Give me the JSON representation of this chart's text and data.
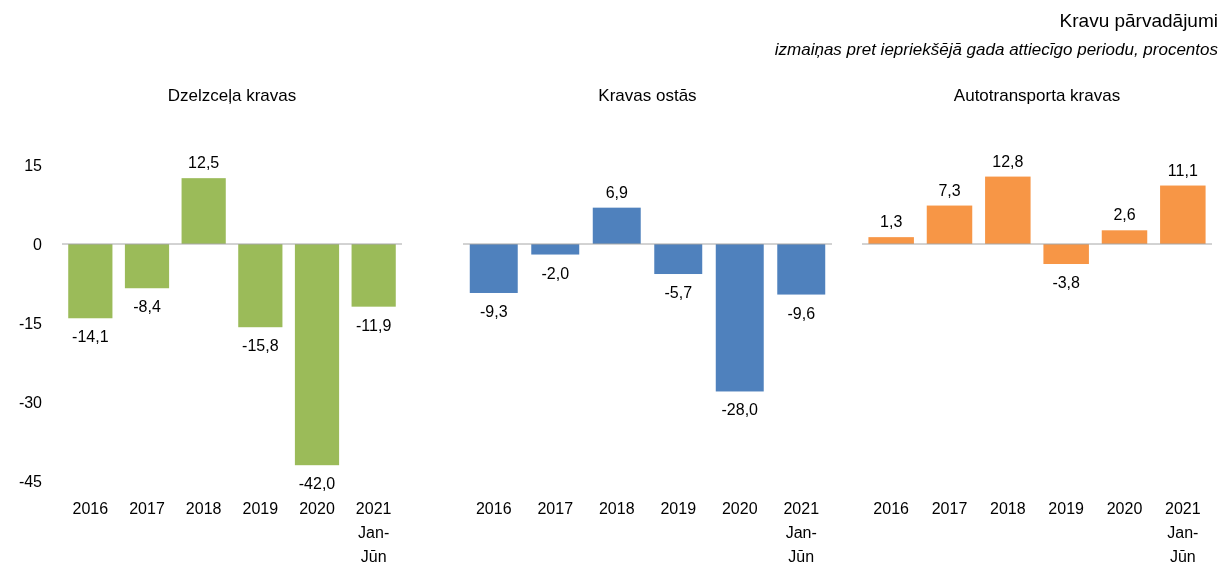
{
  "chart_data": [
    {
      "type": "bar",
      "title": "Dzelzceļa kravas",
      "annotations": [
        "Kravu pārvadājumi",
        "izmaiņas pret iepriekšējā gada attiecīgo periodu, procentos"
      ],
      "categories": [
        "2016",
        "2017",
        "2018",
        "2019",
        "2020",
        "2021 Jan-Jūn"
      ],
      "values": [
        -14.1,
        -8.4,
        12.5,
        -15.8,
        -42.0,
        -11.9
      ],
      "value_labels": [
        "-14,1",
        "-8,4",
        "12,5",
        "-15,8",
        "-42,0",
        "-11,9"
      ],
      "color": "#9bbb59",
      "ylim": [
        -45,
        15
      ],
      "yticks": [
        15,
        0,
        -15,
        -30,
        -45
      ]
    },
    {
      "type": "bar",
      "title": "Kravas ostās",
      "categories": [
        "2016",
        "2017",
        "2018",
        "2019",
        "2020",
        "2021 Jan-Jūn"
      ],
      "values": [
        -9.3,
        -2.0,
        6.9,
        -5.7,
        -28.0,
        -9.6
      ],
      "value_labels": [
        "-9,3",
        "-2,0",
        "6,9",
        "-5,7",
        "-28,0",
        "-9,6"
      ],
      "color": "#4f81bd",
      "ylim": [
        -45,
        15
      ],
      "tick_labels": "x"
    },
    {
      "type": "bar",
      "title": "Autotransporta kravas",
      "categories": [
        "2016",
        "2017",
        "2018",
        "2019",
        "2020",
        "2021 Jan-Jūn"
      ],
      "values": [
        1.3,
        7.3,
        12.8,
        -3.8,
        2.6,
        11.1
      ],
      "value_labels": [
        "1,3",
        "7,3",
        "12,8",
        "-3,8",
        "2,6",
        "11,1"
      ],
      "color": "#f79646",
      "ylim": [
        -45,
        15
      ],
      "tick_labels": "x"
    }
  ]
}
